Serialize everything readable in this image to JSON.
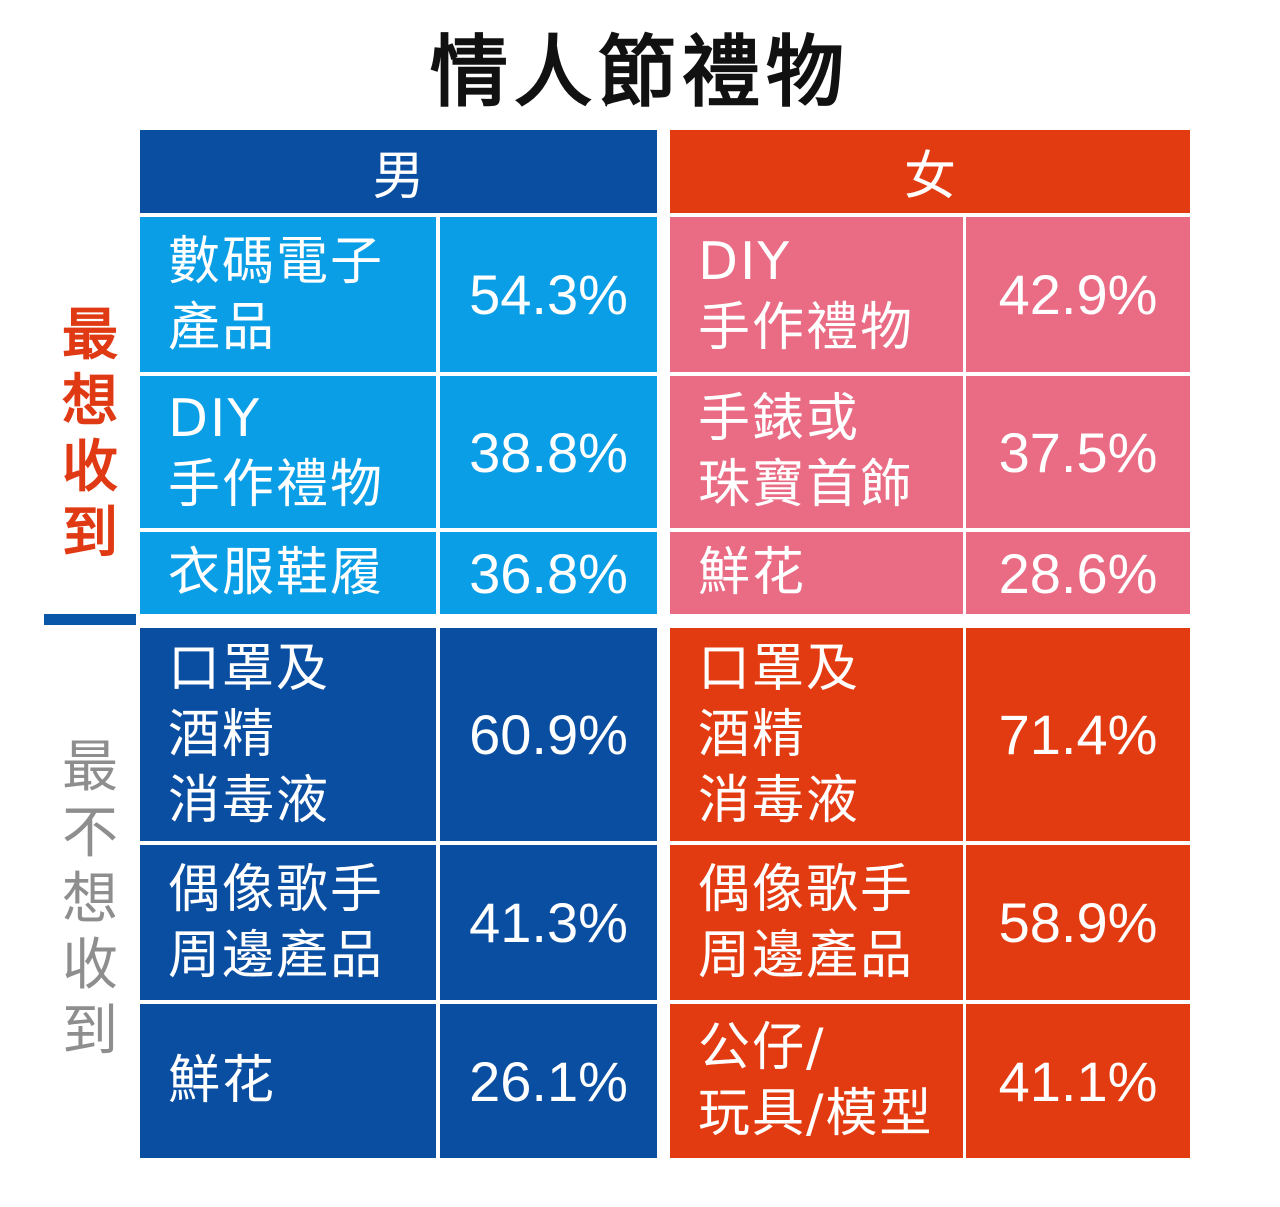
{
  "chart_data": {
    "type": "table",
    "title": "情人節禮物",
    "row_groups": [
      "最想收到",
      "最不想收到"
    ],
    "columns": [
      {
        "header": "男",
        "color": "#0a4ea2"
      },
      {
        "header": "女",
        "color": "#e33b11"
      }
    ],
    "colors": {
      "male_header": "#0a4ea2",
      "male_want": "#0a9ee6",
      "male_dont": "#0a4ea2",
      "female_header": "#e33b11",
      "female_want": "#ea6c84",
      "female_dont": "#e33b11",
      "side_want": "#e03a14",
      "side_dont": "#8e8e8e"
    },
    "rows": [
      {
        "group": "最想收到",
        "male": {
          "item": "數碼電子\n產品",
          "pct": "54.3%"
        },
        "female": {
          "item": "DIY\n手作禮物",
          "pct": "42.9%"
        }
      },
      {
        "group": "最想收到",
        "male": {
          "item": "DIY\n手作禮物",
          "pct": "38.8%"
        },
        "female": {
          "item": "手錶或\n珠寶首飾",
          "pct": "37.5%"
        }
      },
      {
        "group": "最想收到",
        "male": {
          "item": "衣服鞋履",
          "pct": "36.8%"
        },
        "female": {
          "item": "鮮花",
          "pct": "28.6%"
        }
      },
      {
        "group": "最不想收到",
        "male": {
          "item": "口罩及\n酒精\n消毒液",
          "pct": "60.9%"
        },
        "female": {
          "item": "口罩及\n酒精\n消毒液",
          "pct": "71.4%"
        }
      },
      {
        "group": "最不想收到",
        "male": {
          "item": "偶像歌手\n周邊產品",
          "pct": "41.3%"
        },
        "female": {
          "item": "偶像歌手\n周邊產品",
          "pct": "58.9%"
        }
      },
      {
        "group": "最不想收到",
        "male": {
          "item": "鮮花",
          "pct": "26.1%"
        },
        "female": {
          "item": "公仔/\n玩具/模型",
          "pct": "41.1%"
        }
      }
    ]
  }
}
